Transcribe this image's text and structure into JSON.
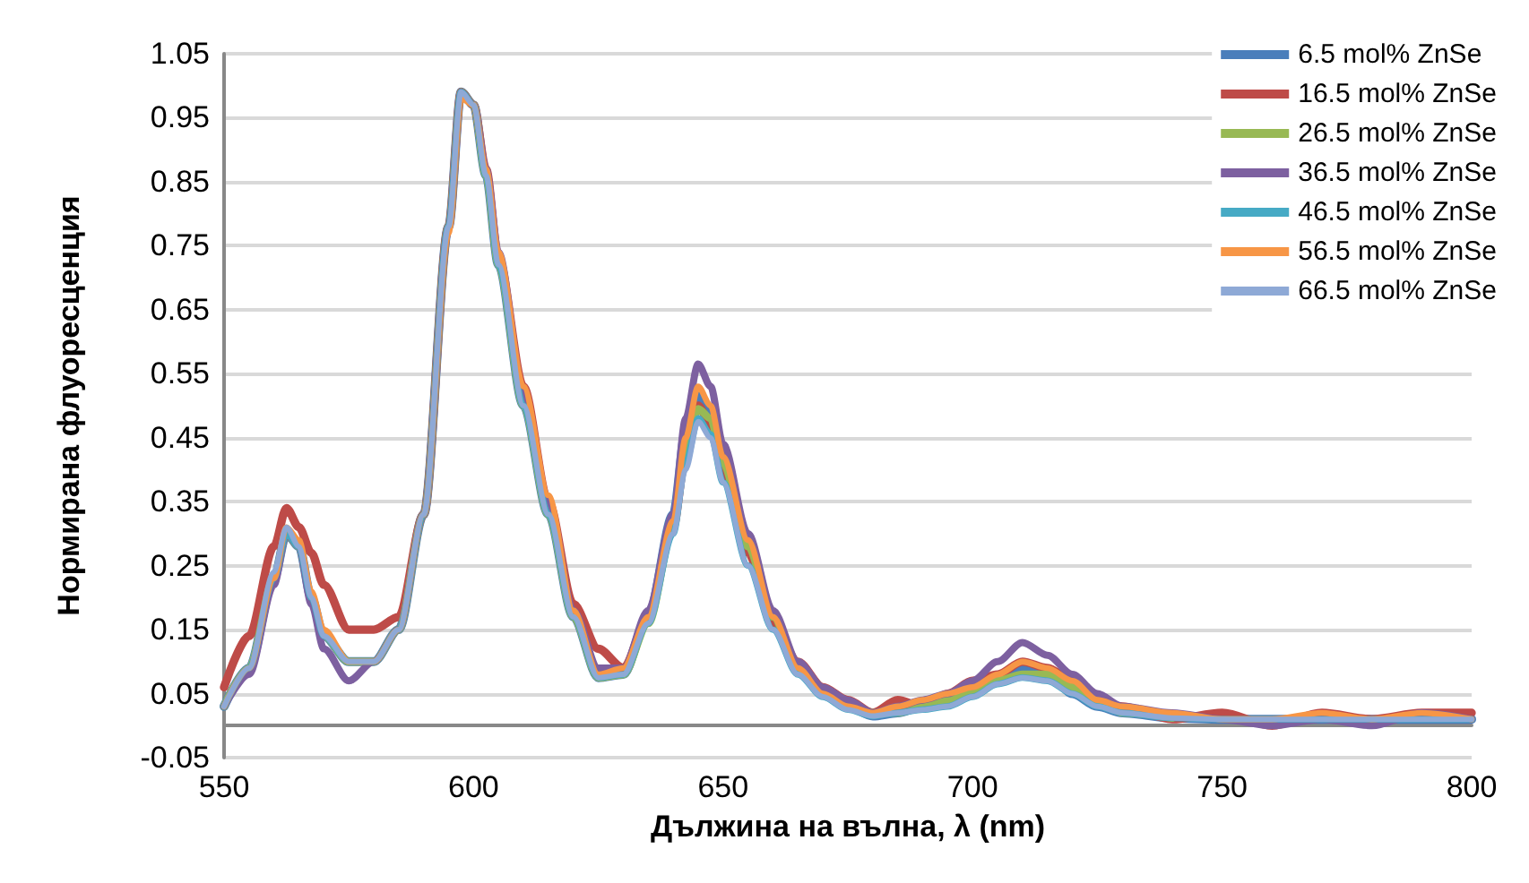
{
  "chart_data": {
    "type": "line",
    "xlabel": "Дължина на вълна, λ (nm)",
    "ylabel": "Нормирана флуоресценция",
    "x": [
      550,
      555,
      560,
      562.5,
      565,
      567.5,
      570,
      575,
      580,
      585,
      590,
      595,
      597.5,
      600,
      602.5,
      605,
      610,
      615,
      620,
      625,
      630,
      635,
      640,
      642.5,
      645,
      647.5,
      650,
      655,
      660,
      665,
      670,
      675,
      680,
      685,
      690,
      695,
      700,
      705,
      710,
      715,
      720,
      725,
      730,
      740,
      750,
      760,
      770,
      780,
      790,
      800
    ],
    "series": [
      {
        "name": "6.5 mol% ZnSe",
        "color": "#4a7ebb",
        "values": [
          0.03,
          0.09,
          0.23,
          0.3,
          0.28,
          0.2,
          0.14,
          0.1,
          0.1,
          0.15,
          0.33,
          0.78,
          0.99,
          0.97,
          0.86,
          0.72,
          0.5,
          0.33,
          0.17,
          0.075,
          0.08,
          0.17,
          0.33,
          0.46,
          0.515,
          0.49,
          0.42,
          0.29,
          0.17,
          0.09,
          0.05,
          0.03,
          0.015,
          0.02,
          0.03,
          0.04,
          0.055,
          0.075,
          0.09,
          0.085,
          0.05,
          0.03,
          0.02,
          0.012,
          0.01,
          0.01,
          0.01,
          0.01,
          0.01,
          0.01
        ]
      },
      {
        "name": "16.5 mol% ZnSe",
        "color": "#be4b48",
        "values": [
          0.06,
          0.14,
          0.28,
          0.34,
          0.31,
          0.27,
          0.22,
          0.15,
          0.15,
          0.17,
          0.33,
          0.78,
          0.99,
          0.97,
          0.87,
          0.73,
          0.53,
          0.35,
          0.19,
          0.12,
          0.09,
          0.17,
          0.31,
          0.42,
          0.5,
          0.47,
          0.4,
          0.27,
          0.16,
          0.1,
          0.06,
          0.04,
          0.02,
          0.04,
          0.03,
          0.05,
          0.07,
          0.08,
          0.1,
          0.09,
          0.07,
          0.04,
          0.03,
          0.01,
          0.02,
          0.0,
          0.02,
          0.01,
          0.02,
          0.02
        ]
      },
      {
        "name": "26.5 mol% ZnSe",
        "color": "#98b954",
        "values": [
          0.03,
          0.09,
          0.23,
          0.3,
          0.28,
          0.2,
          0.14,
          0.1,
          0.1,
          0.15,
          0.33,
          0.78,
          0.99,
          0.97,
          0.86,
          0.72,
          0.5,
          0.33,
          0.17,
          0.075,
          0.08,
          0.16,
          0.31,
          0.43,
          0.495,
          0.48,
          0.41,
          0.28,
          0.17,
          0.09,
          0.05,
          0.03,
          0.02,
          0.02,
          0.03,
          0.04,
          0.05,
          0.07,
          0.08,
          0.08,
          0.06,
          0.04,
          0.02,
          0.012,
          null,
          null,
          null,
          null,
          null,
          null
        ]
      },
      {
        "name": "36.5 mol% ZnSe",
        "color": "#7d60a0",
        "values": [
          0.03,
          0.08,
          0.22,
          0.3,
          0.28,
          0.19,
          0.12,
          0.07,
          0.1,
          0.15,
          0.33,
          0.78,
          0.99,
          0.97,
          0.87,
          0.74,
          0.52,
          0.35,
          0.18,
          0.09,
          0.09,
          0.18,
          0.33,
          0.48,
          0.565,
          0.53,
          0.44,
          0.3,
          0.18,
          0.1,
          0.06,
          0.04,
          0.02,
          0.03,
          0.04,
          0.05,
          0.07,
          0.1,
          0.13,
          0.11,
          0.08,
          0.05,
          0.03,
          0.02,
          0.01,
          0.0,
          0.01,
          0.0,
          0.02,
          0.01
        ]
      },
      {
        "name": "46.5 mol% ZnSe",
        "color": "#46aac5",
        "values": [
          0.03,
          0.09,
          0.23,
          0.3,
          0.28,
          0.2,
          0.14,
          0.1,
          0.1,
          0.15,
          0.33,
          0.78,
          0.99,
          0.97,
          0.86,
          0.72,
          0.5,
          0.33,
          0.17,
          0.075,
          0.08,
          0.16,
          0.3,
          0.41,
          0.48,
          0.455,
          0.38,
          0.25,
          0.15,
          0.08,
          0.045,
          0.025,
          0.015,
          0.02,
          0.025,
          0.03,
          0.045,
          0.065,
          0.075,
          0.07,
          0.05,
          0.03,
          0.02,
          0.012,
          0.01,
          0.01,
          0.01,
          0.01,
          0.01,
          0.01
        ]
      },
      {
        "name": "56.5 mol% ZnSe",
        "color": "#f79646",
        "values": [
          0.03,
          0.09,
          0.23,
          0.31,
          0.29,
          0.21,
          0.15,
          0.1,
          0.1,
          0.15,
          0.33,
          0.77,
          0.98,
          0.97,
          0.87,
          0.74,
          0.53,
          0.36,
          0.18,
          0.08,
          0.09,
          0.17,
          0.32,
          0.45,
          0.53,
          0.5,
          0.42,
          0.29,
          0.17,
          0.09,
          0.05,
          0.03,
          0.02,
          0.03,
          0.04,
          0.05,
          0.06,
          0.08,
          0.1,
          0.09,
          0.07,
          0.04,
          0.03,
          0.02,
          0.01,
          0.01,
          0.02,
          0.01,
          0.02,
          0.01
        ]
      },
      {
        "name": "66.5 mol% ZnSe",
        "color": "#8ea9d6",
        "values": [
          0.03,
          0.09,
          0.24,
          0.31,
          0.28,
          0.2,
          0.14,
          0.1,
          0.1,
          0.15,
          0.33,
          0.78,
          0.99,
          0.97,
          0.86,
          0.72,
          0.5,
          0.33,
          0.17,
          0.075,
          0.08,
          0.16,
          0.3,
          0.4,
          0.475,
          0.45,
          0.38,
          0.25,
          0.15,
          0.08,
          0.045,
          0.025,
          0.015,
          0.02,
          0.025,
          0.03,
          0.045,
          0.065,
          0.075,
          0.07,
          0.05,
          0.03,
          0.02,
          0.012,
          0.01,
          0.01,
          0.01,
          0.01,
          0.01,
          0.01
        ]
      }
    ],
    "xlim": [
      550,
      800
    ],
    "xticks": [
      550,
      600,
      650,
      700,
      750,
      800
    ],
    "ylim": [
      -0.05,
      1.05
    ],
    "yticks": [
      -0.05,
      0.05,
      0.15,
      0.25,
      0.35,
      0.45,
      0.55,
      0.65,
      0.75,
      0.85,
      0.95,
      1.05
    ],
    "grid": "y",
    "legend": "top right",
    "marker": "none",
    "line_style": "solid"
  }
}
